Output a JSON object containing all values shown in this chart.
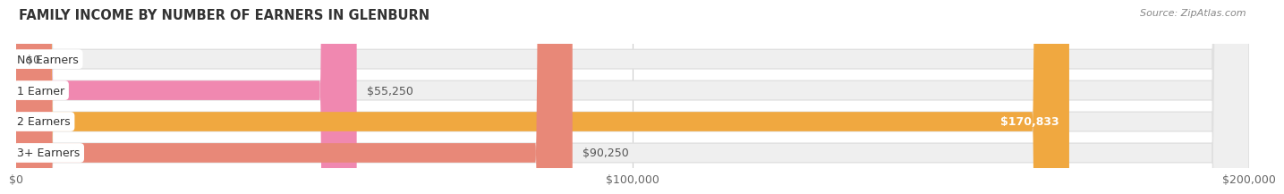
{
  "title": "FAMILY INCOME BY NUMBER OF EARNERS IN GLENBURN",
  "source": "Source: ZipAtlas.com",
  "categories": [
    "No Earners",
    "1 Earner",
    "2 Earners",
    "3+ Earners"
  ],
  "values": [
    0,
    55250,
    170833,
    90250
  ],
  "bar_colors": [
    "#b0b0e0",
    "#f088b0",
    "#f0a840",
    "#e88878"
  ],
  "label_colors": [
    "#333333",
    "#333333",
    "#ffffff",
    "#333333"
  ],
  "x_max": 200000,
  "x_ticks": [
    0,
    100000,
    200000
  ],
  "x_tick_labels": [
    "$0",
    "$100,000",
    "$200,000"
  ],
  "background_color": "#ffffff",
  "bar_bg_color": "#efefef",
  "bar_bg_border": "#e0e0e0",
  "value_labels": [
    "$0",
    "$55,250",
    "$170,833",
    "$90,250"
  ]
}
